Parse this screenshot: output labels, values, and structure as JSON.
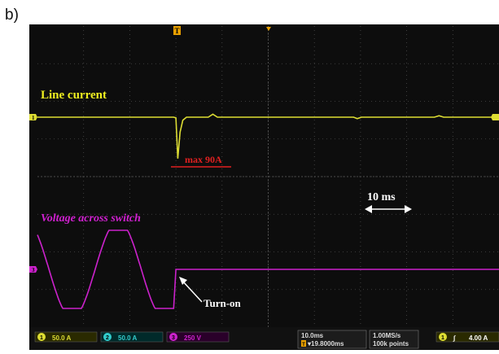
{
  "panel": {
    "label": "b)"
  },
  "annotations": {
    "current_label": "Line current",
    "max_label": "max 90A",
    "voltage_label": "Voltage across switch",
    "time_label": "10 ms",
    "turnon_label": "Turn-on"
  },
  "markers": {
    "trigger_top": "T",
    "ch1_marker": "1",
    "ch3_marker": "3"
  },
  "status_bar": {
    "ch1": {
      "num": "1",
      "scale": "50.0 A"
    },
    "ch2": {
      "num": "2",
      "scale": "50.0 A"
    },
    "ch3": {
      "num": "3",
      "scale": "250 V"
    },
    "timebase": "10.0ms",
    "trigger_pos": "▾19.8000ms",
    "trigger_pos_badge": "T",
    "sample_rate": "1.00MS/s",
    "record_length": "100k points",
    "trigger_src": "1",
    "trigger_slope": "∫",
    "trigger_level": "4.00 A"
  },
  "colors": {
    "current": "#dddd33",
    "voltage": "#cc22cc",
    "grid": "#4a4a4a",
    "annotation_current": "#f0f020",
    "annotation_max": "#e02020",
    "annotation_voltage": "#d020d0",
    "ch2": "#33cccc"
  },
  "chart_data": {
    "type": "line",
    "title": "",
    "xlabel": "",
    "ylabel": "",
    "grid": true,
    "time_per_div_ms": 10,
    "divisions": 10,
    "series": [
      {
        "name": "Line current",
        "x_ms": [
          0,
          29.5,
          30.0,
          30.4,
          30.9,
          31.5,
          32.3,
          34.0,
          37.0,
          38.0,
          39.0,
          45,
          60,
          68.5,
          69.3,
          70.2,
          75,
          86,
          87,
          88,
          95,
          100
        ],
        "y_A": [
          0,
          0,
          -1,
          -55,
          -20,
          -4,
          0,
          0,
          0,
          4,
          0,
          0,
          0,
          0,
          -2,
          0,
          0,
          0,
          2,
          0,
          0,
          0
        ]
      },
      {
        "name": "Voltage across switch",
        "x_ms": [
          0,
          2.5,
          7.5,
          12.5,
          17.5,
          22.5,
          25.0,
          29.5,
          30.0,
          30.5,
          100
        ],
        "y_V": [
          0,
          -210,
          -330,
          330,
          330,
          -330,
          -330,
          -330,
          0,
          0,
          0
        ]
      }
    ]
  }
}
